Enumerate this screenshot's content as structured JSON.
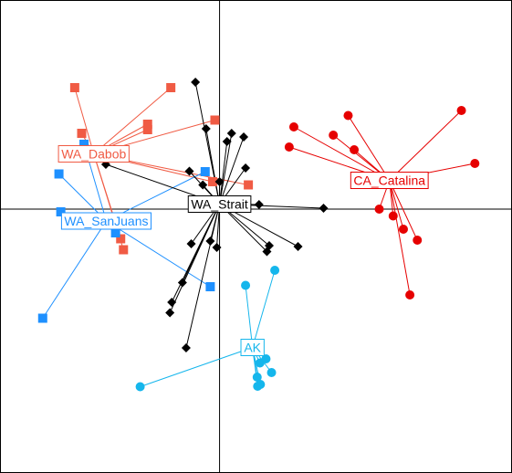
{
  "chart_data": {
    "type": "scatter",
    "title": "",
    "xlabel": "",
    "ylabel": "",
    "xlim": [
      -4.71,
      6.28
    ],
    "ylim": [
      -5.76,
      4.56
    ],
    "grid": false,
    "legend": "none",
    "axes_crossing": [
      0,
      0
    ],
    "series": [
      {
        "name": "CA_Catalina",
        "color": "#e60000",
        "marker": "circle",
        "centroid": [
          3.66,
          0.63
        ],
        "points": [
          [
            1.6,
            1.8
          ],
          [
            2.77,
            2.05
          ],
          [
            5.21,
            2.16
          ],
          [
            2.45,
            1.62
          ],
          [
            1.5,
            1.36
          ],
          [
            2.9,
            1.3
          ],
          [
            5.5,
            1.0
          ],
          [
            3.44,
            0.0
          ],
          [
            3.74,
            -0.15
          ],
          [
            3.96,
            -0.44
          ],
          [
            4.26,
            -0.68
          ],
          [
            4.1,
            -1.88
          ]
        ]
      },
      {
        "name": "WA_Dabob",
        "color": "#f05b44",
        "marker": "square",
        "centroid": [
          -2.71,
          1.21
        ],
        "points": [
          [
            -3.12,
            2.66
          ],
          [
            -1.05,
            2.66
          ],
          [
            -0.1,
            1.95
          ],
          [
            -1.55,
            1.86
          ],
          [
            -1.55,
            1.74
          ],
          [
            -2.97,
            1.66
          ],
          [
            -0.15,
            0.6
          ],
          [
            0.62,
            0.53
          ],
          [
            -2.13,
            -0.65
          ],
          [
            -2.07,
            -0.89
          ]
        ]
      },
      {
        "name": "WA_SanJuans",
        "color": "#1e90ff",
        "marker": "square",
        "centroid": [
          -2.44,
          -0.26
        ],
        "points": [
          [
            -2.92,
            1.42
          ],
          [
            -3.46,
            0.77
          ],
          [
            -3.42,
            -0.06
          ],
          [
            -0.31,
            0.82
          ],
          [
            -2.24,
            -0.52
          ],
          [
            -0.2,
            -1.7
          ],
          [
            -3.81,
            -2.39
          ]
        ]
      },
      {
        "name": "WA_Strait",
        "color": "#000000",
        "marker": "diamond",
        "centroid": [
          0,
          0.11
        ],
        "points": [
          [
            -0.52,
            2.78
          ],
          [
            -0.29,
            1.76
          ],
          [
            0.26,
            1.66
          ],
          [
            0.52,
            1.58
          ],
          [
            0.16,
            1.48
          ],
          [
            0.56,
            0.9
          ],
          [
            -2.45,
            0.98
          ],
          [
            -0.65,
            0.83
          ],
          [
            -0.36,
            0.53
          ],
          [
            0.0,
            0.6
          ],
          [
            0.85,
            0.1
          ],
          [
            2.24,
            0.02
          ],
          [
            -0.61,
            -0.76
          ],
          [
            -0.2,
            -0.7
          ],
          [
            -0.06,
            -0.84
          ],
          [
            1.07,
            -0.8
          ],
          [
            1.69,
            -0.82
          ],
          [
            1.02,
            -0.93
          ],
          [
            -0.8,
            -1.61
          ],
          [
            -1.03,
            -2.04
          ],
          [
            -1.07,
            -2.27
          ],
          [
            -0.72,
            -3.04
          ]
        ]
      },
      {
        "name": "AK",
        "color": "#15b6ec",
        "marker": "circle",
        "centroid": [
          0.71,
          -3.03
        ],
        "points": [
          [
            1.19,
            -1.34
          ],
          [
            0.56,
            -1.67
          ],
          [
            -1.71,
            -3.89
          ],
          [
            0.87,
            -3.37
          ],
          [
            1.0,
            -3.28
          ],
          [
            1.12,
            -3.58
          ],
          [
            0.81,
            -3.68
          ],
          [
            0.88,
            -3.84
          ],
          [
            0.82,
            -3.88
          ]
        ]
      }
    ]
  }
}
